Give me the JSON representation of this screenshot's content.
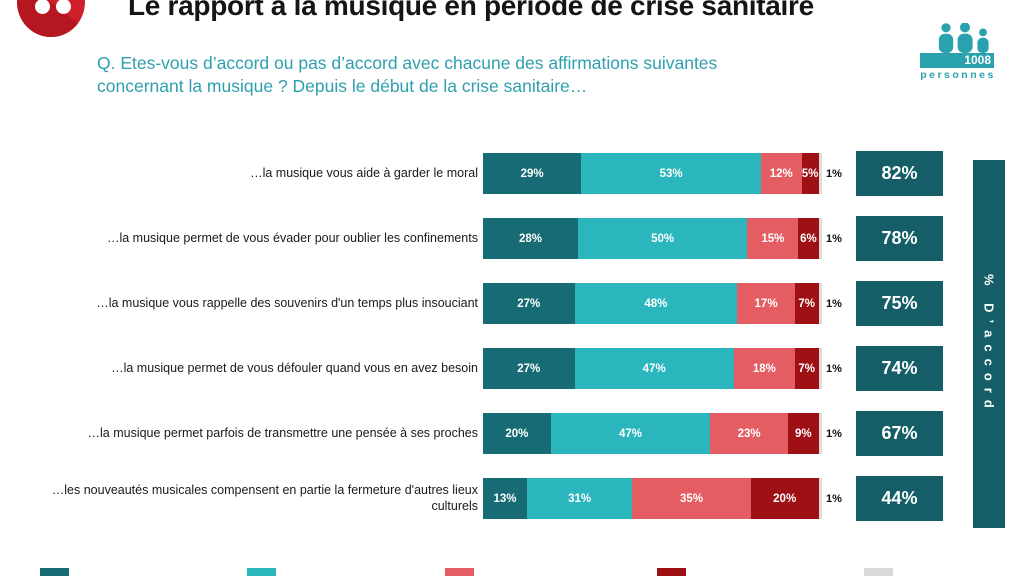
{
  "slide": {
    "title": "Le rapport à la musique en période de crise sanitaire",
    "question": "Q. Etes-vous d’accord ou pas d’accord avec chacune des affirmations suivantes concernant la musique ? Depuis le début de la crise sanitaire…",
    "badge": {
      "count": "1008",
      "label": "personnes"
    }
  },
  "colors": {
    "logo_red": "#ce1f2a",
    "question_teal": "#2e9fae",
    "badge_teal": "#29a2ae",
    "agree_box_teal": "#155e68"
  },
  "chart_data": {
    "type": "bar",
    "variant": "horizontal-stacked",
    "unit": "%",
    "title": "Le rapport à la musique en période de crise sanitaire",
    "categories": [
      "…la musique vous aide à garder le moral",
      "…la musique permet de vous évader pour oublier les confinements",
      "…la musique vous rappelle des souvenirs d'un temps plus insouciant",
      "…la musique permet de vous défouler quand vous en avez besoin",
      "…la musique permet parfois de transmettre une pensée à ses proches",
      "…les nouveautés musicales compensent en partie la fermeture d'autres lieux culturels"
    ],
    "series": [
      {
        "name": "dark-teal",
        "color": "#176b74",
        "label_inside": true,
        "values": [
          29,
          28,
          27,
          27,
          20,
          13
        ]
      },
      {
        "name": "light-teal",
        "color": "#2bb5bc",
        "label_inside": true,
        "values": [
          53,
          50,
          48,
          47,
          47,
          31
        ]
      },
      {
        "name": "salmon",
        "color": "#e45d63",
        "label_inside": true,
        "values": [
          12,
          15,
          17,
          18,
          23,
          35
        ]
      },
      {
        "name": "dark-red",
        "color": "#9e1014",
        "label_inside": true,
        "values": [
          5,
          6,
          7,
          7,
          9,
          20
        ]
      },
      {
        "name": "gray",
        "color": "#dddddd",
        "label_inside": false,
        "values": [
          1,
          1,
          1,
          1,
          1,
          1
        ]
      }
    ],
    "outside_labels": [
      "1%",
      "1%",
      "1%",
      "1%",
      "1%",
      "1%"
    ],
    "agree_totals": [
      82,
      78,
      75,
      74,
      67,
      44
    ],
    "agree_column_label": "% D’accord",
    "xlim": [
      0,
      100
    ],
    "grid": false,
    "legend_position": "bottom",
    "legend_swatches": [
      "#176b74",
      "#2bb5bc",
      "#e45d63",
      "#9e1014",
      "#d9d9d9"
    ],
    "legend_swatch_x": [
      40,
      247,
      445,
      657,
      864
    ]
  }
}
